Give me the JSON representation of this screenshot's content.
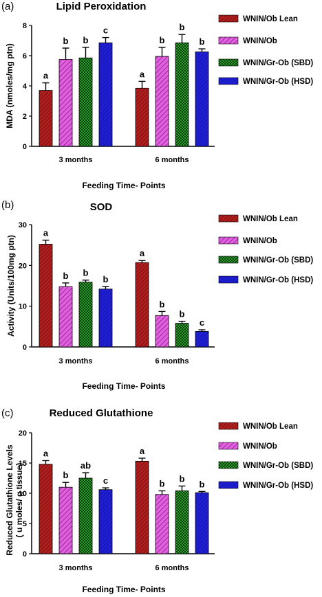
{
  "palette": {
    "lean": "#b01e1e",
    "ob": "#d23fd0",
    "sbd": "#1a7a1a",
    "hsd": "#1a1ad0",
    "axis": "#000000"
  },
  "chart_data": [
    {
      "type": "bar",
      "panel_label": "(a)",
      "title": "Lipid Peroxidation",
      "xlabel": "Feeding Time- Points",
      "ylabel": "MDA (nmoles/mg ptn)",
      "ylim": [
        0,
        8
      ],
      "yticks": [
        "0",
        "2",
        "4",
        "6",
        "8"
      ],
      "categories": [
        "3 months",
        "6 months"
      ],
      "legend_position": "right",
      "series": [
        {
          "name": "WNIN/Ob Lean",
          "values": [
            3.7,
            3.85
          ],
          "errors": [
            0.5,
            0.45
          ],
          "letters": [
            "a",
            "a"
          ]
        },
        {
          "name": "WNIN/Ob",
          "values": [
            5.75,
            5.95
          ],
          "errors": [
            0.75,
            0.6
          ],
          "letters": [
            "b",
            "b"
          ]
        },
        {
          "name": "WNIN/Gr-Ob (SBD)",
          "values": [
            5.85,
            6.85
          ],
          "errors": [
            0.7,
            0.55
          ],
          "letters": [
            "b",
            "b"
          ]
        },
        {
          "name": "WNIN/Gr-Ob (HSD)",
          "values": [
            6.85,
            6.25
          ],
          "errors": [
            0.35,
            0.2
          ],
          "letters": [
            "c",
            "b"
          ]
        }
      ]
    },
    {
      "type": "bar",
      "panel_label": "(b)",
      "title": "SOD",
      "xlabel": "Feeding Time- Points",
      "ylabel": "Activity (Units/100mg ptn)",
      "ylim": [
        0,
        30
      ],
      "yticks": [
        "0",
        "10",
        "20",
        "30"
      ],
      "categories": [
        "3 months",
        "6 months"
      ],
      "legend_position": "right",
      "series": [
        {
          "name": "WNIN/Ob Lean",
          "values": [
            25.2,
            20.7
          ],
          "errors": [
            1.0,
            0.5
          ],
          "letters": [
            "a",
            "a"
          ]
        },
        {
          "name": "WNIN/Ob",
          "values": [
            14.8,
            7.7
          ],
          "errors": [
            0.9,
            1.0
          ],
          "letters": [
            "b",
            "b"
          ]
        },
        {
          "name": "WNIN/Gr-Ob (SBD)",
          "values": [
            15.9,
            5.8
          ],
          "errors": [
            0.5,
            0.5
          ],
          "letters": [
            "b",
            "b"
          ]
        },
        {
          "name": "WNIN/Gr-Ob (HSD)",
          "values": [
            14.2,
            3.8
          ],
          "errors": [
            0.6,
            0.4
          ],
          "letters": [
            "b",
            "c"
          ]
        }
      ]
    },
    {
      "type": "bar",
      "panel_label": "(c)",
      "title": "Reduced Glutathione",
      "xlabel": "Feeding Time- Points",
      "ylabel_lines": [
        "Reduced Glutathione Levels",
        "( u moles/ g tissue)"
      ],
      "ylim": [
        0,
        20
      ],
      "yticks": [
        "0",
        "5",
        "10",
        "15",
        "20"
      ],
      "categories": [
        "3 months",
        "6 months"
      ],
      "legend_position": "right",
      "series": [
        {
          "name": "WNIN/Ob Lean",
          "values": [
            14.8,
            15.3
          ],
          "errors": [
            0.6,
            0.5
          ],
          "letters": [
            "a",
            "a"
          ]
        },
        {
          "name": "WNIN/Ob",
          "values": [
            11.0,
            9.8
          ],
          "errors": [
            0.8,
            0.6
          ],
          "letters": [
            "b",
            "b"
          ]
        },
        {
          "name": "WNIN/Gr-Ob (SBD)",
          "values": [
            12.5,
            10.4
          ],
          "errors": [
            0.9,
            0.8
          ],
          "letters": [
            "ab",
            "b"
          ]
        },
        {
          "name": "WNIN/Gr-Ob (HSD)",
          "values": [
            10.6,
            10.1
          ],
          "errors": [
            0.3,
            0.2
          ],
          "letters": [
            "c",
            "b"
          ]
        }
      ]
    }
  ]
}
